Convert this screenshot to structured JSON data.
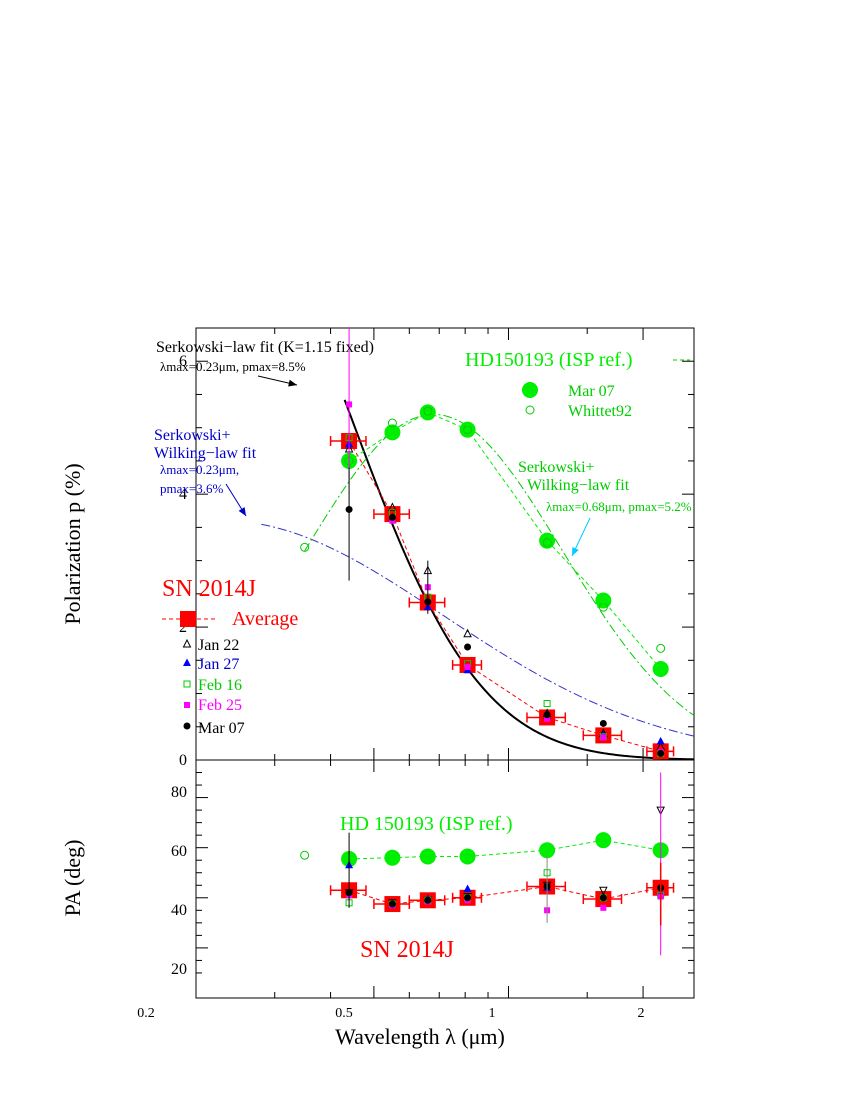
{
  "chart_data": [
    {
      "type": "scatter",
      "panel": "top",
      "xlabel": "Wavelength λ (μm)",
      "ylabel": "Polarization p (%)",
      "xscale": "log",
      "xlim": [
        0.2,
        2.6
      ],
      "ylim": [
        0,
        6.5
      ],
      "x_tick_labels": [
        "0.2",
        "0.5",
        "1",
        "2"
      ],
      "y_tick_labels": [
        "0",
        "2",
        "4",
        "6"
      ],
      "annotations": {
        "ser_title": "Serkowski−law  fit  (K=1.15  fixed)",
        "ser_params": "λmax=0.23μm,  pmax=8.5%",
        "sw_blue_1": "Serkowski+",
        "sw_blue_2": "Wilking−law  fit",
        "sw_blue_3": "λmax=0.23μm,",
        "sw_blue_4": "pmax=3.6%",
        "sw_green_1": "Serkowski+",
        "sw_green_2": "Wilking−law  fit",
        "sw_green_3": "λmax=0.68μm,  pmax=5.2%",
        "hd_title": "HD150193  (ISP  ref.)",
        "sn_title": "SN  2014J"
      },
      "legend_hd": [
        "Mar  07",
        "Whittet92"
      ],
      "legend_sn": [
        "Average",
        "Jan  22",
        "Jan  27",
        "Feb  16",
        "Feb  25",
        "Mar  07"
      ],
      "series": [
        {
          "name": "Average",
          "color": "#ff0000",
          "x": [
            0.44,
            0.55,
            0.66,
            0.81,
            1.22,
            1.63,
            2.19
          ],
          "y": [
            4.8,
            3.7,
            2.37,
            1.43,
            0.64,
            0.37,
            0.13
          ],
          "xerr_lo": [
            0.04,
            0.05,
            0.06,
            0.06,
            0.12,
            0.16,
            0.15
          ],
          "xerr_hi": [
            0.04,
            0.05,
            0.06,
            0.06,
            0.12,
            0.16,
            0.15
          ]
        },
        {
          "name": "Jan  22",
          "color": "#000000",
          "x": [
            0.44,
            0.55,
            0.66,
            0.81,
            1.22,
            1.63,
            2.19
          ],
          "y": [
            4.68,
            3.8,
            2.85,
            1.9,
            0.7,
            0.4,
            0.2
          ]
        },
        {
          "name": "Jan  27",
          "color": "#0000ff",
          "x": [
            0.44,
            0.55,
            0.66,
            0.81,
            1.22,
            1.63,
            2.19
          ],
          "y": [
            4.75,
            3.65,
            2.3,
            1.35,
            0.66,
            0.38,
            0.28
          ]
        },
        {
          "name": "Feb  16",
          "color": "#00cc00",
          "x": [
            0.44,
            0.55,
            0.66,
            0.81,
            1.22,
            1.63,
            2.19
          ],
          "y": [
            4.85,
            3.72,
            2.45,
            1.45,
            0.85,
            0.35,
            0.1
          ]
        },
        {
          "name": "Feb  25",
          "color": "#ff00ff",
          "x": [
            0.44,
            0.55,
            0.66,
            0.81,
            1.22,
            1.63,
            2.19
          ],
          "y": [
            5.35,
            3.6,
            2.6,
            1.4,
            0.62,
            0.34,
            0.12
          ]
        },
        {
          "name": "Mar  07",
          "color": "#000000",
          "x": [
            0.44,
            0.55,
            0.66,
            0.81,
            1.22,
            1.63,
            2.19
          ],
          "y": [
            3.77,
            3.65,
            2.38,
            1.7,
            0.68,
            0.55,
            0.1
          ]
        },
        {
          "name": "HD150193 Mar  07",
          "color": "#00ee00",
          "x": [
            0.44,
            0.55,
            0.66,
            0.81,
            1.22,
            1.63,
            2.19
          ],
          "y": [
            4.5,
            4.93,
            5.23,
            4.97,
            3.3,
            2.4,
            1.37
          ]
        },
        {
          "name": "Whittet92",
          "color": "#00cc00",
          "x": [
            0.35,
            0.44,
            0.55,
            0.66,
            0.81,
            1.22,
            1.63,
            2.19
          ],
          "y": [
            3.2,
            4.5,
            5.07,
            5.25,
            4.97,
            3.27,
            2.3,
            1.68
          ]
        }
      ],
      "fits": [
        {
          "kind": "serkowski",
          "color": "#000000",
          "lambda_max": 0.23,
          "p_max": 8.5,
          "K": 1.15,
          "x_range": [
            0.43,
            2.6
          ]
        },
        {
          "kind": "serkowski_wilking",
          "color": "#3333cc",
          "lambda_max": 0.23,
          "p_max": 3.6,
          "x_range": [
            0.28,
            2.6
          ]
        },
        {
          "kind": "serkowski_wilking",
          "color": "#00cc00",
          "lambda_max": 0.68,
          "p_max": 5.2,
          "x_range": [
            0.35,
            2.6
          ]
        }
      ]
    },
    {
      "type": "scatter",
      "panel": "bottom",
      "xlabel": "Wavelength λ (μm)",
      "ylabel": "PA  (deg)",
      "xscale": "log",
      "xlim": [
        0.2,
        2.6
      ],
      "ylim": [
        0,
        95
      ],
      "y_tick_labels": [
        "20",
        "40",
        "60",
        "80"
      ],
      "annotations": {
        "hd_title": "HD  150193  (ISP  ref.)",
        "sn_title": "SN  2014J"
      },
      "series": [
        {
          "name": "HD150193",
          "color": "#00ee00",
          "x": [
            0.44,
            0.55,
            0.66,
            0.81,
            1.22,
            1.63,
            2.19
          ],
          "y": [
            55.5,
            56.0,
            56.5,
            56.5,
            59.0,
            63.0,
            59.0
          ]
        },
        {
          "name": "Whittet92",
          "color": "#00cc00",
          "x": [
            0.35
          ],
          "y": [
            57.0
          ]
        },
        {
          "name": "SN 2014J Average",
          "color": "#ff0000",
          "x": [
            0.44,
            0.55,
            0.66,
            0.81,
            1.22,
            1.63,
            2.19
          ],
          "y": [
            43.0,
            37.5,
            39.0,
            40.0,
            44.5,
            39.5,
            44.0
          ],
          "xerr_lo": [
            0.04,
            0.05,
            0.06,
            0.06,
            0.12,
            0.16,
            0.15
          ],
          "xerr_hi": [
            0.04,
            0.05,
            0.06,
            0.06,
            0.12,
            0.16,
            0.15
          ]
        },
        {
          "name": "Jan  22",
          "color": "#000000",
          "x": [
            0.44,
            0.55,
            0.66,
            0.81,
            1.22,
            1.63,
            2.19
          ],
          "y": [
            42.0,
            38.0,
            39.0,
            40.5,
            45.0,
            43.0,
            75.0
          ]
        },
        {
          "name": "Jan  27",
          "color": "#0000ff",
          "x": [
            0.44,
            0.55,
            0.66,
            0.81,
            1.22,
            1.63,
            2.19
          ],
          "y": [
            53.0,
            37.0,
            39.5,
            43.5,
            44.0,
            40.0,
            42.0
          ]
        },
        {
          "name": "Feb  16",
          "color": "#00cc00",
          "x": [
            0.44,
            0.55,
            0.66,
            0.81,
            1.22,
            1.63,
            2.19
          ],
          "y": [
            38.0,
            37.5,
            39.0,
            40.0,
            50.0,
            40.0,
            41.0
          ]
        },
        {
          "name": "Feb  25",
          "color": "#ff00ff",
          "x": [
            0.44,
            0.55,
            0.66,
            0.81,
            1.22,
            1.63,
            2.19
          ],
          "y": [
            41.0,
            37.0,
            38.5,
            39.0,
            35.0,
            36.0,
            40.5
          ]
        },
        {
          "name": "Mar  07",
          "color": "#000000",
          "x": [
            0.44,
            0.55,
            0.66,
            0.81,
            1.22,
            1.63,
            2.19
          ],
          "y": [
            42.0,
            37.5,
            39.0,
            40.0,
            44.5,
            40.0,
            44.0
          ]
        }
      ]
    }
  ]
}
